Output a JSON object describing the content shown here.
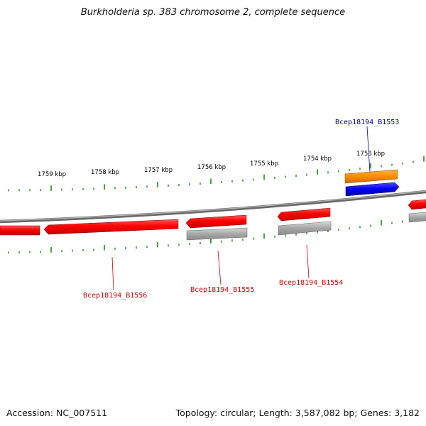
{
  "title": "Burkholderia sp. 383 chromosome 2, complete sequence",
  "footer": {
    "accession": "Accession: NC_007511",
    "summary": "Topology: circular; Length: 3,587,082 bp; Genes: 3,182"
  },
  "colors": {
    "forward_cds": "#ff0000",
    "reverse_cds": "#ff0000",
    "gene_gray": "#a8a8a8",
    "highlight_gene_orange": "#ff8c00",
    "highlight_cds_blue": "#0000ee",
    "ticks": "#1a8a1a",
    "backbone": "#888888",
    "label_red": "#cc0000",
    "label_blue": "#0000aa"
  },
  "axis": {
    "unit": "kbp",
    "tick_labels": [
      "1759 kbp",
      "1758 kbp",
      "1757 kbp",
      "1756 kbp",
      "1755 kbp",
      "1754 kbp",
      "1753 kbp"
    ]
  },
  "genes": [
    {
      "label": "Bcep18194_B1553",
      "label_color": "blue"
    },
    {
      "label": "Bcep18194_B1554",
      "label_color": "red"
    },
    {
      "label": "Bcep18194_B1555",
      "label_color": "red"
    },
    {
      "label": "Bcep18194_B1556",
      "label_color": "red"
    }
  ]
}
